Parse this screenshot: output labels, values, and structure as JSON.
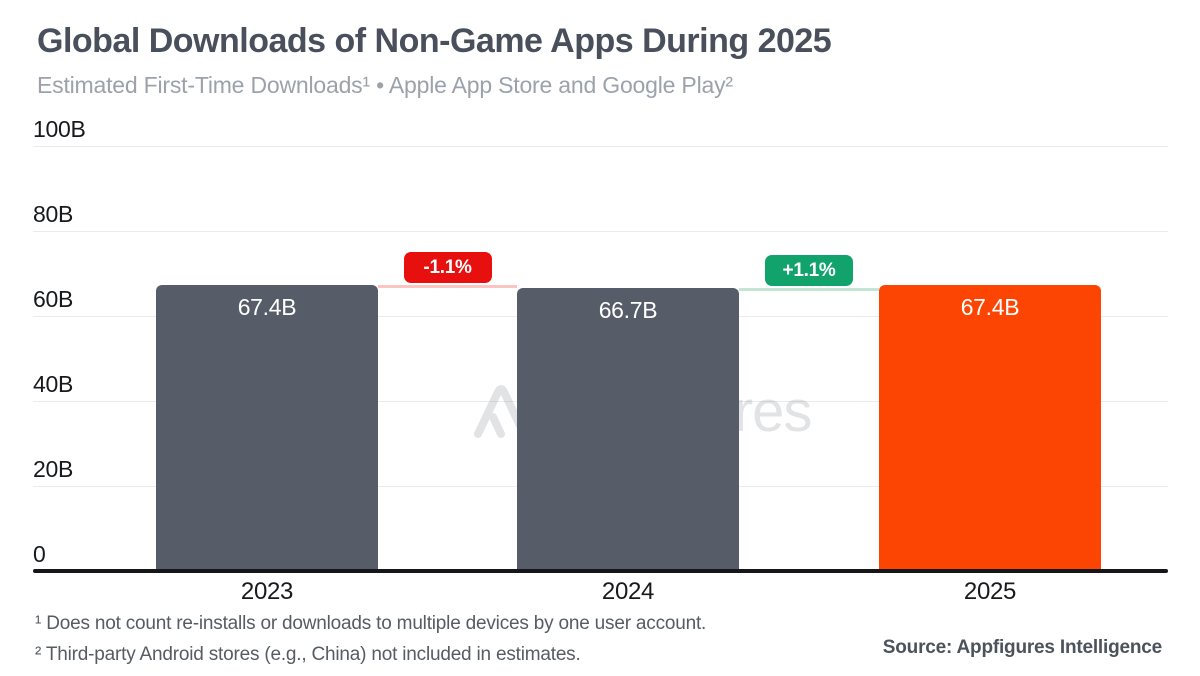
{
  "header": {
    "title": "Global Downloads of Non-Game Apps During 2025",
    "subtitle": "Estimated First-Time Downloads¹ • Apple App Store and Google Play²"
  },
  "chart_data": {
    "type": "bar",
    "title": "Global Downloads of Non-Game Apps During 2025",
    "subtitle": "Estimated First-Time Downloads • Apple App Store and Google Play",
    "categories": [
      "2023",
      "2024",
      "2025"
    ],
    "values": [
      67.4,
      66.7,
      67.4
    ],
    "value_labels": [
      "67.4B",
      "66.7B",
      "67.4B"
    ],
    "unit": "billions of first-time downloads",
    "xlabel": "",
    "ylabel": "",
    "ylim": [
      0,
      100
    ],
    "y_ticks": [
      0,
      20,
      40,
      60,
      80,
      100
    ],
    "y_tick_labels": [
      "0",
      "20B",
      "40B",
      "60B",
      "80B",
      "100B"
    ],
    "grid": "horizontal",
    "legend": null,
    "bar_colors": [
      "#575D68",
      "#575D68",
      "#FC4503"
    ],
    "change_badges": [
      {
        "between": [
          "2023",
          "2024"
        ],
        "label": "-1.1%",
        "color": "#E8100F",
        "connector_color": "#FBC6C2"
      },
      {
        "between": [
          "2024",
          "2025"
        ],
        "label": "+1.1%",
        "color": "#12A36D",
        "connector_color": "#C2E5D6"
      }
    ]
  },
  "watermark": {
    "logo": "appfigures-logo",
    "text": "appfigures"
  },
  "footnotes": [
    "¹ Does not count re-installs or downloads to multiple devices by one user account.",
    "² Third-party Android stores (e.g., China) not included in estimates."
  ],
  "source": "Source: Appfigures Intelligence",
  "colors": {
    "title": "#49505B",
    "subtitle": "#9BA2AB",
    "bar_gray": "#575D68",
    "bar_orange": "#FC4503",
    "badge_red": "#E8100F",
    "badge_green": "#12A36D",
    "axis": "#14161A",
    "gridline": "#EAEBEC",
    "tick_text": "#17191C",
    "footnote": "#565C63"
  }
}
